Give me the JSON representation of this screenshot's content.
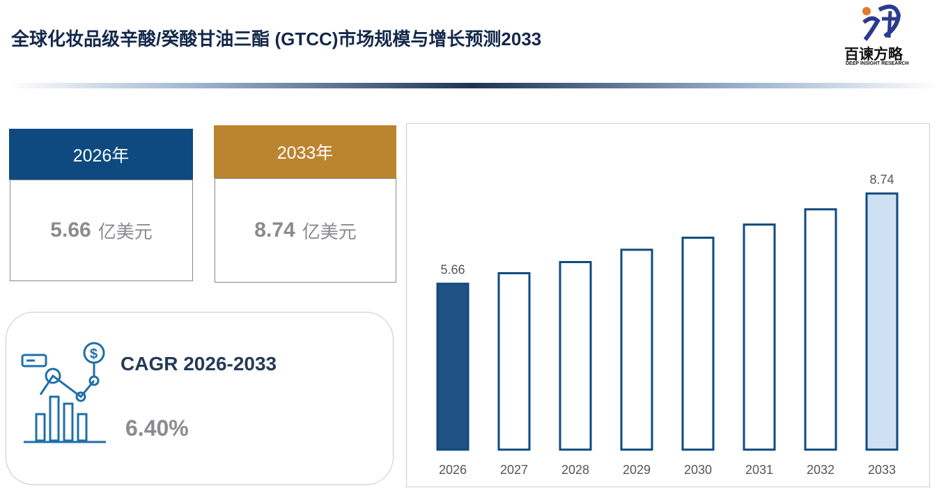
{
  "header": {
    "title": "全球化妆品级辛酸/癸酸甘油三酯 (GTCC)市场规模与增长预测2033",
    "logo_name": "百谏方略",
    "logo_sub": "DEEP INSIGHT RESEARCH"
  },
  "cards": [
    {
      "year": "2026年",
      "value": 5.66,
      "unit": "亿美元",
      "color": "#0e4a80"
    },
    {
      "year": "2033年",
      "value": 8.74,
      "unit": "亿美元",
      "color": "#bb842f"
    }
  ],
  "cagr": {
    "label": "CAGR 2026-2033",
    "value": "6.40%"
  },
  "chart_data": {
    "type": "bar",
    "categories": [
      "2026",
      "2027",
      "2028",
      "2029",
      "2030",
      "2031",
      "2032",
      "2033"
    ],
    "values": [
      5.66,
      6.02,
      6.4,
      6.82,
      7.23,
      7.68,
      8.2,
      8.74
    ],
    "colors": [
      "#1f5185",
      "#ffffff",
      "#ffffff",
      "#ffffff",
      "#ffffff",
      "#ffffff",
      "#ffffff",
      "#cfe0f3"
    ],
    "edge_color": "#0e4a80"
  }
}
